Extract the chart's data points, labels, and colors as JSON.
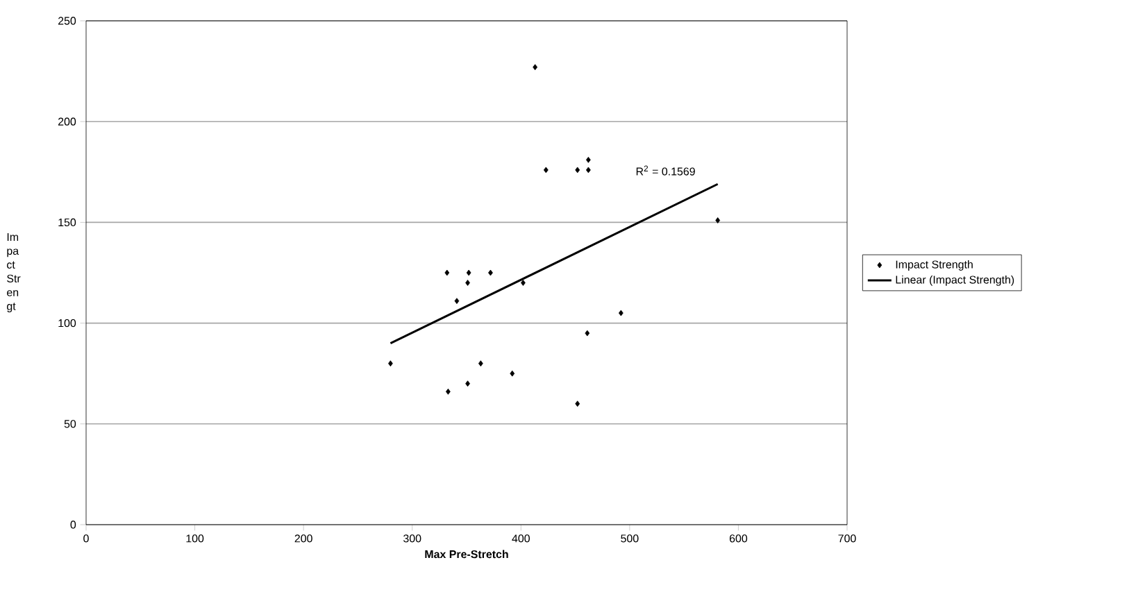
{
  "chart_data": {
    "type": "scatter",
    "xlabel": "Max Pre-Stretch",
    "ylabel": "Im pa ct Str en gt",
    "xlim": [
      0,
      700
    ],
    "xticks": [
      0,
      100,
      200,
      300,
      400,
      500,
      600,
      700
    ],
    "ylim": [
      0,
      250
    ],
    "yticks": [
      0,
      50,
      100,
      150,
      200,
      250
    ],
    "grid": "y",
    "legend": "right",
    "series": [
      {
        "name": "Impact Strength",
        "marker": "diamond",
        "color": "#000000",
        "x": [
          280,
          333,
          341,
          351,
          363,
          351,
          392,
          452,
          461,
          492,
          402,
          413,
          423,
          452,
          462,
          462,
          581,
          332,
          352,
          372
        ],
        "values": [
          80,
          66,
          111,
          120,
          80,
          70,
          75,
          60,
          95,
          105,
          120,
          227,
          176,
          176,
          176,
          181,
          151,
          125,
          125,
          125
        ]
      },
      {
        "name": "Linear (Impact Strength)",
        "type": "line",
        "marker": "none",
        "color": "#000000",
        "x": [
          280,
          581
        ],
        "values": [
          90,
          169
        ]
      }
    ],
    "annotations": [
      "R$^{2}$ = 0.1569"
    ]
  }
}
